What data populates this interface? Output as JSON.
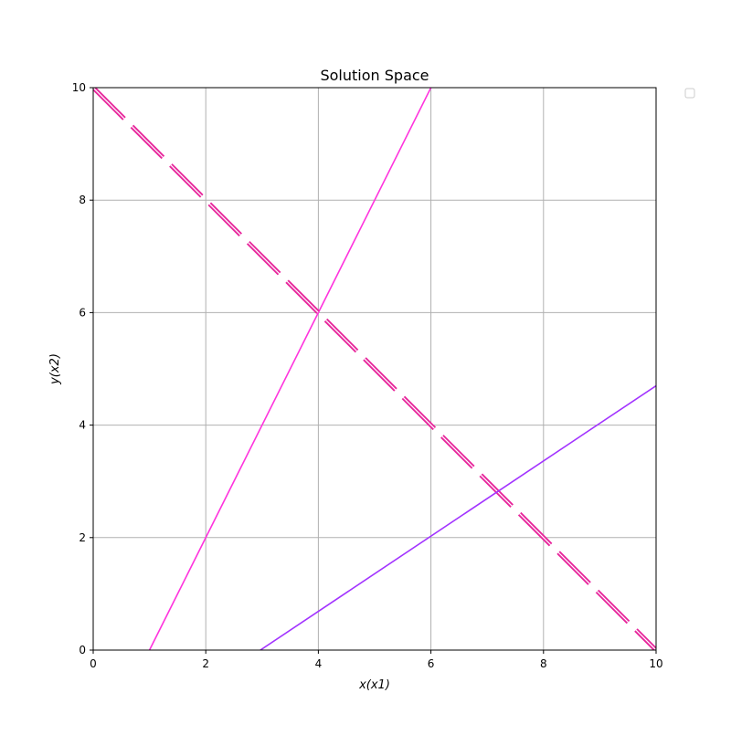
{
  "chart_data": {
    "type": "line",
    "title": "Solution Space",
    "xlabel": "x(x1)",
    "ylabel": "y(x2)",
    "xlim": [
      0,
      10
    ],
    "ylim": [
      0,
      10
    ],
    "x_ticks": [
      0,
      2,
      4,
      6,
      8,
      10
    ],
    "y_ticks": [
      0,
      2,
      4,
      6,
      8,
      10
    ],
    "grid": true,
    "legend": {
      "placement": "outside-top-right",
      "entries": []
    },
    "series": [
      {
        "x": [
          1,
          6
        ],
        "y": [
          0,
          10
        ],
        "color": "#ff33dd",
        "style": "solid"
      },
      {
        "x": [
          0,
          10
        ],
        "y": [
          10,
          0
        ],
        "color": "#e8279c",
        "style": "dashed-double"
      },
      {
        "x": [
          2.97,
          10
        ],
        "y": [
          0,
          4.7
        ],
        "color": "#a233ff",
        "style": "solid"
      }
    ],
    "colors": {
      "grid": "#b0b0b0",
      "axes": "#000000",
      "background": "#ffffff"
    }
  }
}
